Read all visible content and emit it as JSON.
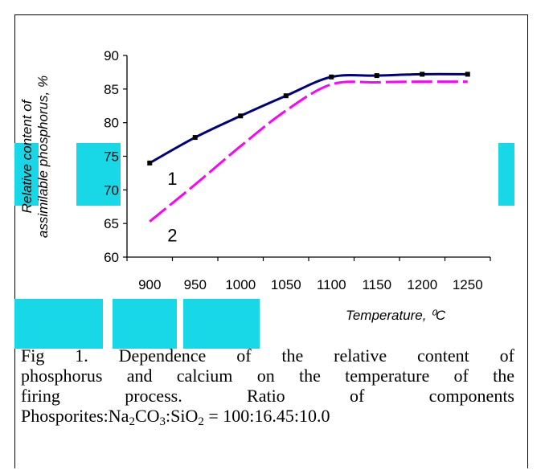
{
  "chart_data": {
    "type": "line",
    "xlabel": "Temperature, ⁰C",
    "ylabel_line1": "Relative content of",
    "ylabel_line2": "assimilable phosphorus, %",
    "x_ticks": [
      "900",
      "950",
      "1000",
      "1050",
      "1100",
      "1150",
      "1200",
      "1250"
    ],
    "y_ticks": [
      90,
      85,
      80,
      75,
      70,
      65,
      60
    ],
    "ylim": [
      60,
      90
    ],
    "series": [
      {
        "name": "1",
        "color": "#00007f",
        "style": "solid",
        "x": [
          900,
          950,
          1000,
          1050,
          1100,
          1150,
          1200,
          1250
        ],
        "values": [
          74,
          77.8,
          81,
          84,
          86.8,
          87,
          87.2,
          87.2
        ]
      },
      {
        "name": "2",
        "color": "#ff00ff",
        "style": "dashed",
        "x": [
          900,
          950,
          1000,
          1050,
          1100,
          1150,
          1200,
          1250
        ],
        "values": [
          65.3,
          70.8,
          76.5,
          81.8,
          85.7,
          86.0,
          86.1,
          86.1
        ]
      }
    ]
  },
  "caption": {
    "line1": "Fig 1.   Dependence of the relative content of",
    "line2": "phosphorus and calcium on the temperature of the",
    "line3": "firing       process.       Ratio       of       components",
    "line4_prefix": "Phosporites:Na",
    "sub1": "2",
    "line4_mid1": "CO",
    "sub2": "3",
    "line4_mid2": ":SiO",
    "sub3": "2",
    "line4_suffix": " = 100:16.45:10.0"
  },
  "colors": {
    "watermark": "#18d8e8",
    "axis": "#000000"
  }
}
